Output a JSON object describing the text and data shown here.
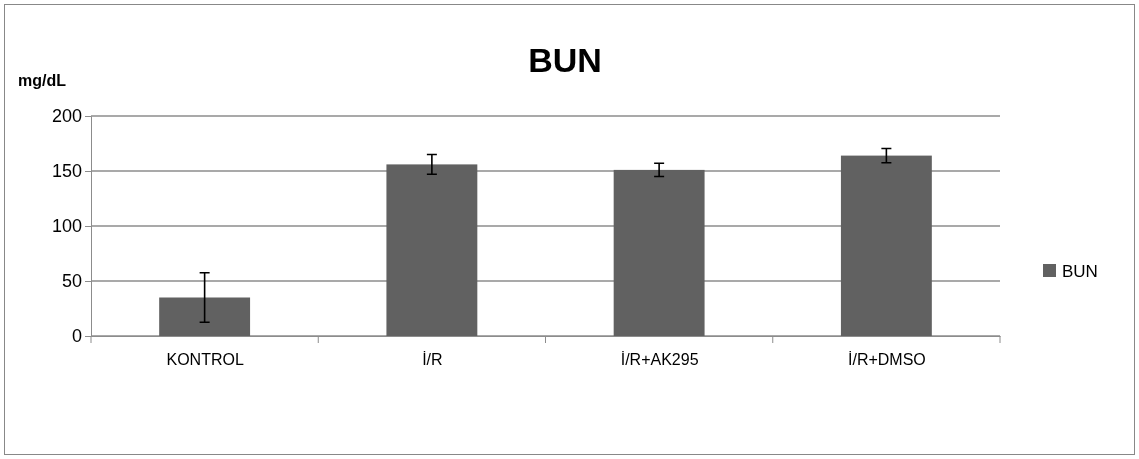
{
  "chart_data": {
    "type": "bar",
    "title": "BUN",
    "ylabel": "mg/dL",
    "categories": [
      "KONTROL",
      "İ/R",
      "İ/R+AK295",
      "İ/R+DMSO"
    ],
    "series": [
      {
        "name": "BUN",
        "color": "#616161",
        "values": [
          35,
          156,
          151,
          164
        ],
        "errors": [
          22.5,
          9,
          6,
          6.5
        ]
      }
    ],
    "ylim": [
      0,
      200
    ],
    "yticks": [
      0,
      50,
      100,
      150,
      200
    ],
    "grid": "y",
    "legend": "right"
  }
}
